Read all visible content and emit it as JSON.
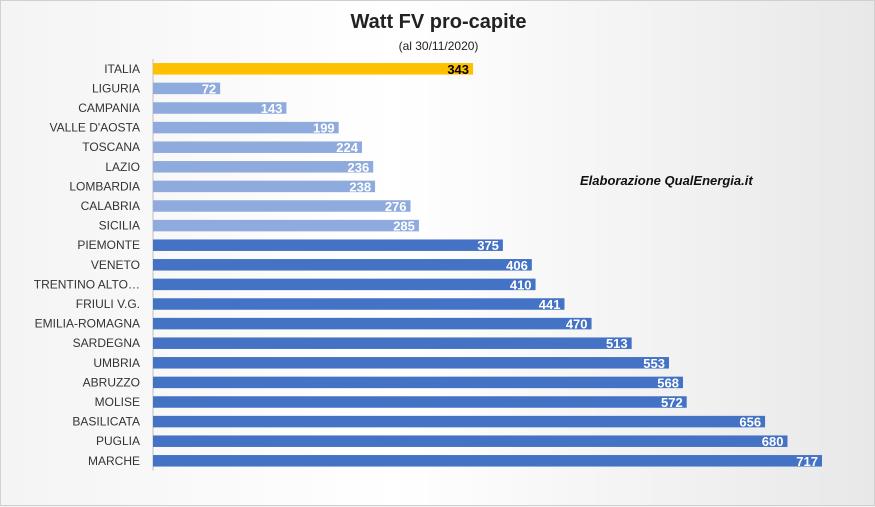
{
  "chart_data": {
    "type": "bar",
    "orientation": "horizontal",
    "title": "Watt FV pro-capite",
    "subtitle": "(al 30/11/2020)",
    "annotation": "Elaborazione QualEnergia.it",
    "xlim": [
      0,
      717
    ],
    "grid": false,
    "legend": "none",
    "categories": [
      "ITALIA",
      "LIGURIA",
      "CAMPANIA",
      "VALLE D'AOSTA",
      "TOSCANA",
      "LAZIO",
      "LOMBARDIA",
      "CALABRIA",
      "SICILIA",
      "PIEMONTE",
      "VENETO",
      "TRENTINO ALTO…",
      "FRIULI V.G.",
      "EMILIA-ROMAGNA",
      "SARDEGNA",
      "UMBRIA",
      "ABRUZZO",
      "MOLISE",
      "BASILICATA",
      "PUGLIA",
      "MARCHE"
    ],
    "values": [
      343,
      72,
      143,
      199,
      224,
      236,
      238,
      276,
      285,
      375,
      406,
      410,
      441,
      470,
      513,
      553,
      568,
      572,
      656,
      680,
      717
    ],
    "bar_colors": [
      "#ffc000",
      "#8faadc",
      "#8faadc",
      "#8faadc",
      "#8faadc",
      "#8faadc",
      "#8faadc",
      "#8faadc",
      "#8faadc",
      "#4472c4",
      "#4472c4",
      "#4472c4",
      "#4472c4",
      "#4472c4",
      "#4472c4",
      "#4472c4",
      "#4472c4",
      "#4472c4",
      "#4472c4",
      "#4472c4",
      "#4472c4"
    ],
    "highlight_label_color": "#000000",
    "label_color": "#ffffff"
  }
}
